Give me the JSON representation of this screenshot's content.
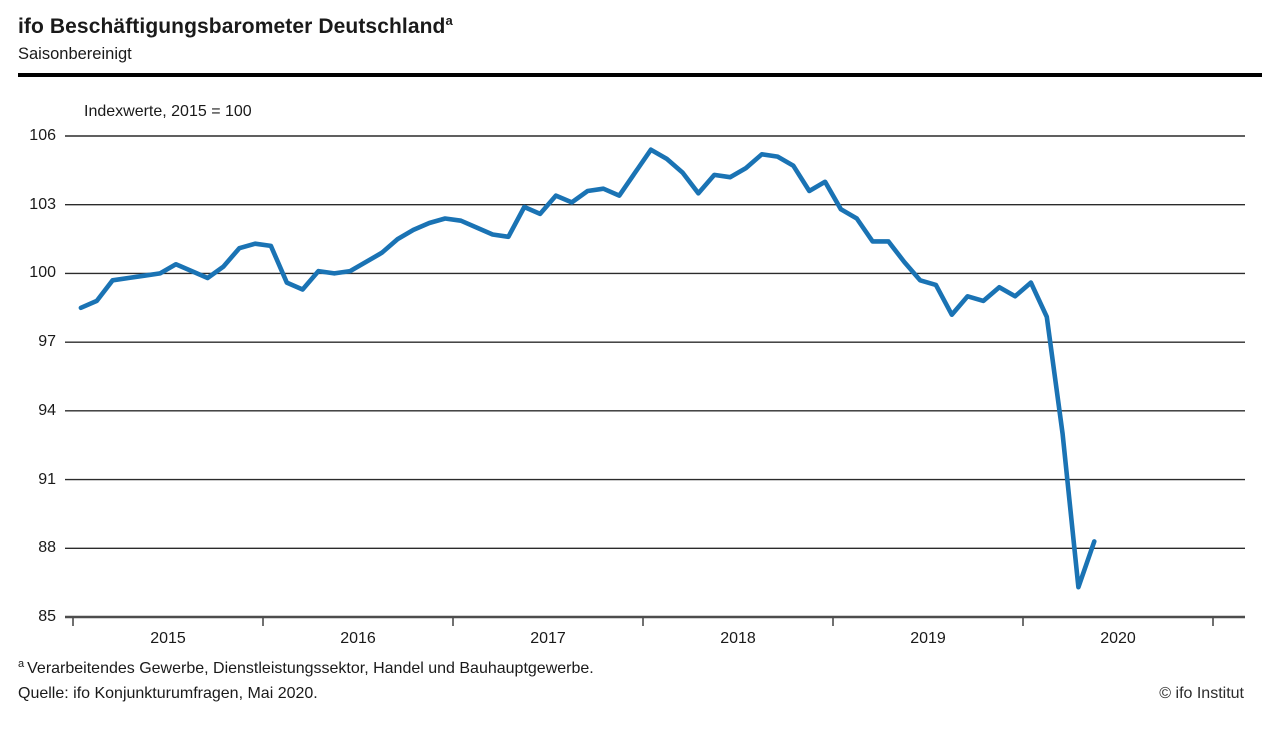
{
  "header": {
    "title": "ifo Beschäftigungsbarometer Deutschland",
    "title_sup": "a",
    "subtitle": "Saisonbereinigt"
  },
  "chart_data": {
    "type": "line",
    "title": "ifo Beschäftigungsbarometer Deutschland (saisonbereinigt)",
    "axis_note": "Indexwerte, 2015 = 100",
    "ylabel": "Indexwerte, 2015 = 100",
    "xlabel": "",
    "ylim": [
      85,
      106
    ],
    "y_ticks": [
      106,
      103,
      100,
      97,
      94,
      91,
      88,
      85
    ],
    "x_year_labels": [
      "2015",
      "2016",
      "2017",
      "2018",
      "2019",
      "2020"
    ],
    "grid": true,
    "legend_position": "none",
    "line_color": "#1a73b4",
    "months": [
      "2015-01",
      "2015-02",
      "2015-03",
      "2015-04",
      "2015-05",
      "2015-06",
      "2015-07",
      "2015-08",
      "2015-09",
      "2015-10",
      "2015-11",
      "2015-12",
      "2016-01",
      "2016-02",
      "2016-03",
      "2016-04",
      "2016-05",
      "2016-06",
      "2016-07",
      "2016-08",
      "2016-09",
      "2016-10",
      "2016-11",
      "2016-12",
      "2017-01",
      "2017-02",
      "2017-03",
      "2017-04",
      "2017-05",
      "2017-06",
      "2017-07",
      "2017-08",
      "2017-09",
      "2017-10",
      "2017-11",
      "2017-12",
      "2018-01",
      "2018-02",
      "2018-03",
      "2018-04",
      "2018-05",
      "2018-06",
      "2018-07",
      "2018-08",
      "2018-09",
      "2018-10",
      "2018-11",
      "2018-12",
      "2019-01",
      "2019-02",
      "2019-03",
      "2019-04",
      "2019-05",
      "2019-06",
      "2019-07",
      "2019-08",
      "2019-09",
      "2019-10",
      "2019-11",
      "2019-12",
      "2020-01",
      "2020-02",
      "2020-03",
      "2020-04",
      "2020-05"
    ],
    "series": [
      {
        "name": "ifo Beschäftigungsbarometer",
        "values": [
          98.5,
          98.8,
          99.7,
          99.8,
          99.9,
          100.0,
          100.4,
          100.1,
          99.8,
          100.3,
          101.1,
          101.3,
          101.2,
          99.6,
          99.3,
          100.1,
          100.0,
          100.1,
          100.5,
          100.9,
          101.5,
          101.9,
          102.2,
          102.4,
          102.3,
          102.0,
          101.7,
          101.6,
          102.9,
          102.6,
          103.4,
          103.1,
          103.6,
          103.7,
          103.4,
          104.4,
          105.4,
          105.0,
          104.4,
          103.5,
          104.3,
          104.2,
          104.6,
          105.2,
          105.1,
          104.7,
          103.6,
          104.0,
          102.8,
          102.4,
          101.4,
          101.4,
          100.5,
          99.7,
          99.5,
          98.2,
          99.0,
          98.8,
          99.4,
          99.0,
          99.6,
          98.1,
          93.0,
          86.3,
          88.3
        ]
      }
    ]
  },
  "footer": {
    "footnote_sup": "a",
    "footnote": "Verarbeitendes Gewerbe, Dienstleistungssektor, Handel und Bauhauptgewerbe.",
    "source": "Quelle: ifo Konjunkturumfragen, Mai 2020.",
    "copyright": "© ifo Institut"
  }
}
